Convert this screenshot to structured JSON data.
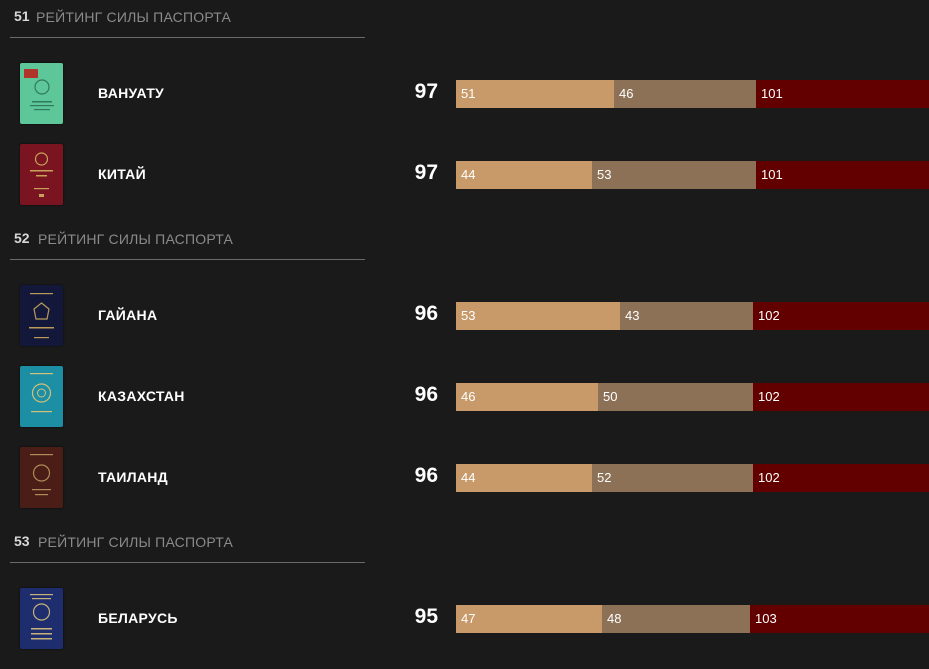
{
  "colors": {
    "background": "#1a1a1a",
    "visa_free": "#c99a69",
    "visa_on_arrival": "#8c7157",
    "visa_required": "#620000"
  },
  "groups": [
    {
      "rank": "51",
      "label": "РЕЙТИНГ СИЛЫ ПАСПОРТА",
      "countries": [
        {
          "name": "ВАНУАТУ",
          "score": "97",
          "seg1": "51",
          "seg2": "46",
          "seg3": "101",
          "passport_color": "#5ec79a",
          "icon": "vanuatu-passport-icon"
        },
        {
          "name": "КИТАЙ",
          "score": "97",
          "seg1": "44",
          "seg2": "53",
          "seg3": "101",
          "passport_color": "#7a1420",
          "icon": "china-passport-icon"
        }
      ]
    },
    {
      "rank": "52",
      "label": "РЕЙТИНГ СИЛЫ ПАСПОРТА",
      "countries": [
        {
          "name": "ГАЙАНА",
          "score": "96",
          "seg1": "53",
          "seg2": "43",
          "seg3": "102",
          "passport_color": "#13183a",
          "icon": "guyana-passport-icon"
        },
        {
          "name": "КАЗАХСТАН",
          "score": "96",
          "seg1": "46",
          "seg2": "50",
          "seg3": "102",
          "passport_color": "#1c8fa5",
          "icon": "kazakhstan-passport-icon"
        },
        {
          "name": "ТАИЛАНД",
          "score": "96",
          "seg1": "44",
          "seg2": "52",
          "seg3": "102",
          "passport_color": "#4a1e16",
          "icon": "thailand-passport-icon"
        }
      ]
    },
    {
      "rank": "53",
      "label": "РЕЙТИНГ СИЛЫ ПАСПОРТА",
      "countries": [
        {
          "name": "БЕЛАРУСЬ",
          "score": "95",
          "seg1": "47",
          "seg2": "48",
          "seg3": "103",
          "passport_color": "#1d2d6e",
          "icon": "belarus-passport-icon"
        }
      ]
    }
  ]
}
